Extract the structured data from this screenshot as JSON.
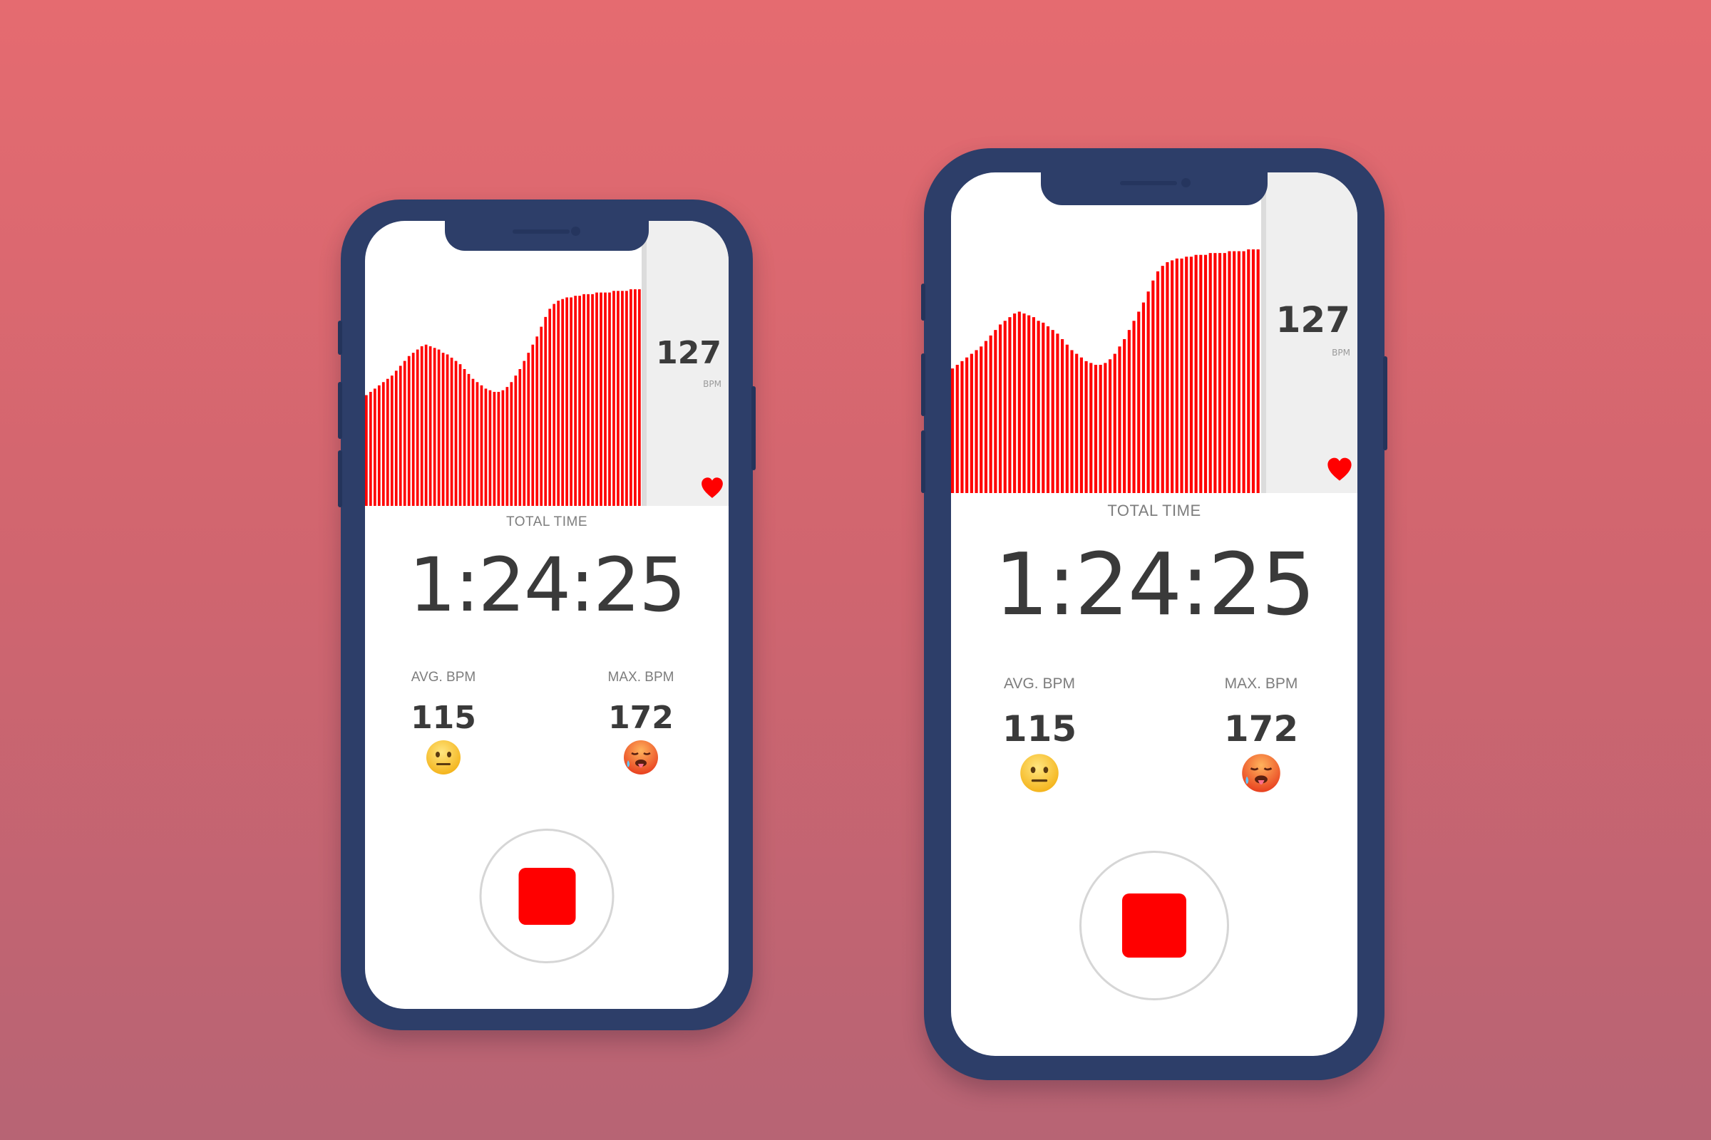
{
  "phones": [
    {
      "live_bpm": "127",
      "live_unit": "BPM",
      "total_time_label": "TOTAL TIME",
      "total_time": "1:24:25",
      "avg_label": "AVG. BPM",
      "avg_value": "115",
      "avg_emoji": "neutral-face-icon",
      "max_label": "MAX. BPM",
      "max_value": "172",
      "max_emoji": "hot-face-icon"
    },
    {
      "live_bpm": "127",
      "live_unit": "BPM",
      "total_time_label": "TOTAL TIME",
      "total_time": "1:24:25",
      "avg_label": "AVG. BPM",
      "avg_value": "115",
      "avg_emoji": "neutral-face-icon",
      "max_label": "MAX. BPM",
      "max_value": "172",
      "max_emoji": "hot-face-icon"
    }
  ],
  "colors": {
    "bar": "#ff0000",
    "phone_frame": "#2d3e69",
    "stop_button": "#ff0000"
  },
  "chart_data": {
    "type": "bar",
    "values": [
      68,
      70,
      72,
      74,
      76,
      78,
      80,
      83,
      86,
      89,
      92,
      94,
      96,
      98,
      99,
      98,
      97,
      96,
      94,
      93,
      91,
      89,
      87,
      84,
      81,
      78,
      76,
      74,
      72,
      71,
      70,
      70,
      71,
      73,
      76,
      80,
      84,
      89,
      94,
      99,
      104,
      110,
      116,
      121,
      124,
      126,
      127,
      128,
      128,
      129,
      129,
      130,
      130,
      130,
      131,
      131,
      131,
      131,
      132,
      132,
      132,
      132,
      133,
      133,
      133,
      133
    ],
    "ylim": [
      0,
      175
    ]
  }
}
